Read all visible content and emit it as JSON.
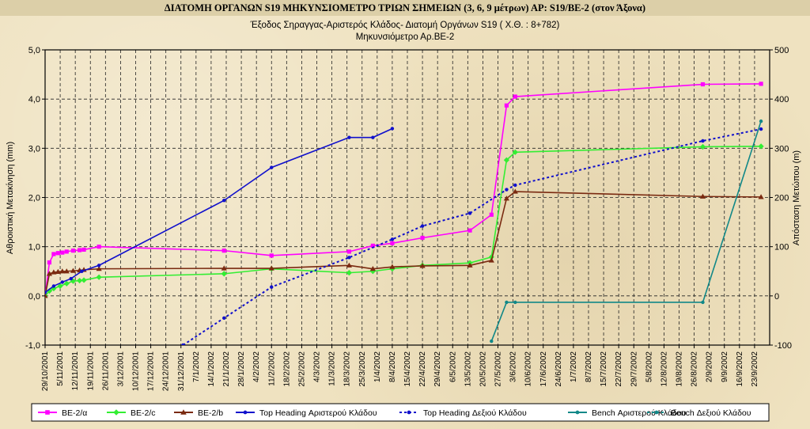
{
  "header": {
    "title": "ΔΙΑΤΟΜΗ ΟΡΓΑΝΩΝ S19 ΜΗΚΥΝΣΙΟΜΕΤΡΟ ΤΡΙΩΝ ΣΗΜΕΙΩΝ (3, 6, 9 μέτρων)     ΑΡ:  S19/ΒΕ-2 (στον Άξονα)"
  },
  "chart_data": {
    "type": "line",
    "title": "Έξοδος Σηραγγας-Αριστερός Κλάδος- Διατομή Οργάνων  S19 ( Χ.Θ. : 8+782)",
    "subtitle": "Μηκυνσιόμετρο  Αρ.ΒΕ-2",
    "ylabel": "Αθροιστική Μετακίνηση (mm)",
    "y2label": "Απόσταση Μετώπου (m)",
    "ylim": [
      -1.0,
      5.0
    ],
    "y2lim": [
      -100,
      500
    ],
    "yticks": [
      "-1,0",
      "0,0",
      "1,0",
      "2,0",
      "3,0",
      "4,0",
      "5,0"
    ],
    "y2ticks": [
      "-100",
      "0",
      "100",
      "200",
      "300",
      "400",
      "500"
    ],
    "xlim": [
      "2001-10-29",
      "2002-09-30"
    ],
    "xticks": [
      "29/10/2001",
      "5/11/2001",
      "12/11/2001",
      "19/11/2001",
      "26/11/2001",
      "3/12/2001",
      "10/12/2001",
      "17/12/2001",
      "24/12/2001",
      "31/12/2001",
      "7/1/2002",
      "14/1/2002",
      "21/1/2002",
      "28/1/2002",
      "4/2/2002",
      "11/2/2002",
      "18/2/2002",
      "25/2/2002",
      "4/3/2002",
      "11/3/2002",
      "18/3/2002",
      "25/3/2002",
      "1/4/2002",
      "8/4/2002",
      "15/4/2002",
      "22/4/2002",
      "29/4/2002",
      "6/5/2002",
      "13/5/2002",
      "20/5/2002",
      "27/5/2002",
      "3/6/2002",
      "10/6/2002",
      "17/6/2002",
      "24/6/2002",
      "1/7/2002",
      "8/7/2002",
      "15/7/2002",
      "22/7/2002",
      "29/7/2002",
      "5/8/2002",
      "12/8/2002",
      "19/8/2002",
      "26/8/2002",
      "2/9/2002",
      "9/9/2002",
      "16/9/2002",
      "23/9/2002"
    ],
    "grid": true,
    "legend_position": "bottom",
    "series": [
      {
        "name": "BE-2/α",
        "color": "#ff00ff",
        "axis": "left",
        "dash": "solid",
        "marker": "square",
        "x": [
          "2001-10-29",
          "2001-10-31",
          "2001-11-02",
          "2001-11-04",
          "2001-11-06",
          "2001-11-08",
          "2001-11-11",
          "2001-11-14",
          "2001-11-16",
          "2001-11-23",
          "2002-01-20",
          "2002-02-11",
          "2002-03-19",
          "2002-03-30",
          "2002-04-08",
          "2002-04-22",
          "2002-05-14",
          "2002-05-24",
          "2002-05-31",
          "2002-06-04",
          "2002-08-30",
          "2002-09-26"
        ],
        "y": [
          0.0,
          0.68,
          0.85,
          0.87,
          0.88,
          0.9,
          0.92,
          0.93,
          0.94,
          1.0,
          0.92,
          0.82,
          0.9,
          1.02,
          1.07,
          1.18,
          1.33,
          1.65,
          3.87,
          4.05,
          4.3,
          4.31
        ]
      },
      {
        "name": "BE-2/c",
        "color": "#33ee33",
        "axis": "left",
        "dash": "solid",
        "marker": "diamond",
        "x": [
          "2001-10-29",
          "2001-10-31",
          "2001-11-02",
          "2001-11-05",
          "2001-11-08",
          "2001-11-11",
          "2001-11-14",
          "2001-11-16",
          "2001-11-23",
          "2002-01-20",
          "2002-02-11",
          "2002-03-19",
          "2002-03-30",
          "2002-04-08",
          "2002-04-22",
          "2002-05-14",
          "2002-05-24",
          "2002-05-31",
          "2002-06-04",
          "2002-08-30",
          "2002-09-26"
        ],
        "y": [
          0.0,
          0.1,
          0.15,
          0.2,
          0.25,
          0.3,
          0.31,
          0.32,
          0.38,
          0.45,
          0.55,
          0.47,
          0.5,
          0.55,
          0.62,
          0.67,
          0.79,
          2.76,
          2.92,
          3.03,
          3.04
        ]
      },
      {
        "name": "BE-2/b",
        "color": "#7a2a10",
        "axis": "left",
        "dash": "solid",
        "marker": "triangle",
        "x": [
          "2001-10-29",
          "2001-10-31",
          "2001-11-02",
          "2001-11-04",
          "2001-11-06",
          "2001-11-08",
          "2001-11-11",
          "2001-11-14",
          "2001-11-16",
          "2001-11-23",
          "2002-01-20",
          "2002-02-11",
          "2002-03-19",
          "2002-03-30",
          "2002-04-08",
          "2002-04-22",
          "2002-05-14",
          "2002-05-24",
          "2002-05-31",
          "2002-06-04",
          "2002-08-30",
          "2002-09-26"
        ],
        "y": [
          0.0,
          0.45,
          0.48,
          0.49,
          0.5,
          0.5,
          0.51,
          0.52,
          0.53,
          0.55,
          0.56,
          0.56,
          0.62,
          0.55,
          0.59,
          0.61,
          0.62,
          0.72,
          1.98,
          2.12,
          2.02,
          2.01
        ]
      },
      {
        "name": "Top Heading Αριστερού Κλάδου",
        "color": "#1010cc",
        "axis": "right",
        "dash": "solid",
        "marker": "circle",
        "x": [
          "2001-10-29",
          "2001-11-02",
          "2001-11-06",
          "2001-11-10",
          "2001-11-15",
          "2001-11-23",
          "2002-01-20",
          "2002-02-11",
          "2002-03-19",
          "2002-03-30",
          "2002-04-08"
        ],
        "y": [
          7,
          20,
          28,
          35,
          50,
          62,
          194,
          261,
          322,
          322,
          340
        ]
      },
      {
        "name": "Top Heading Δεξιού Κλάδου",
        "color": "#1010cc",
        "axis": "right",
        "dash": "dotted",
        "marker": "circle",
        "x": [
          "2002-01-01",
          "2002-01-20",
          "2002-02-11",
          "2002-03-19",
          "2002-04-08",
          "2002-04-22",
          "2002-05-14",
          "2002-05-31",
          "2002-06-04",
          "2002-08-30",
          "2002-09-26"
        ],
        "y": [
          -100,
          -45,
          18,
          78,
          115,
          142,
          168,
          216,
          225,
          315,
          339
        ]
      },
      {
        "name": "Bench Αριστερού Κλάδου",
        "color": "#118888",
        "axis": "right",
        "dash": "solid",
        "marker": "circle",
        "x": [
          "2002-05-24",
          "2002-05-31",
          "2002-06-04",
          "2002-08-30",
          "2002-09-26"
        ],
        "y": [
          -92,
          -13,
          -13,
          -13,
          355
        ]
      },
      {
        "name": "Bench Δεξιού Κλάδου",
        "color": "#118888",
        "axis": "right",
        "dash": "dotted",
        "marker": "circle",
        "x": [],
        "y": []
      }
    ]
  }
}
